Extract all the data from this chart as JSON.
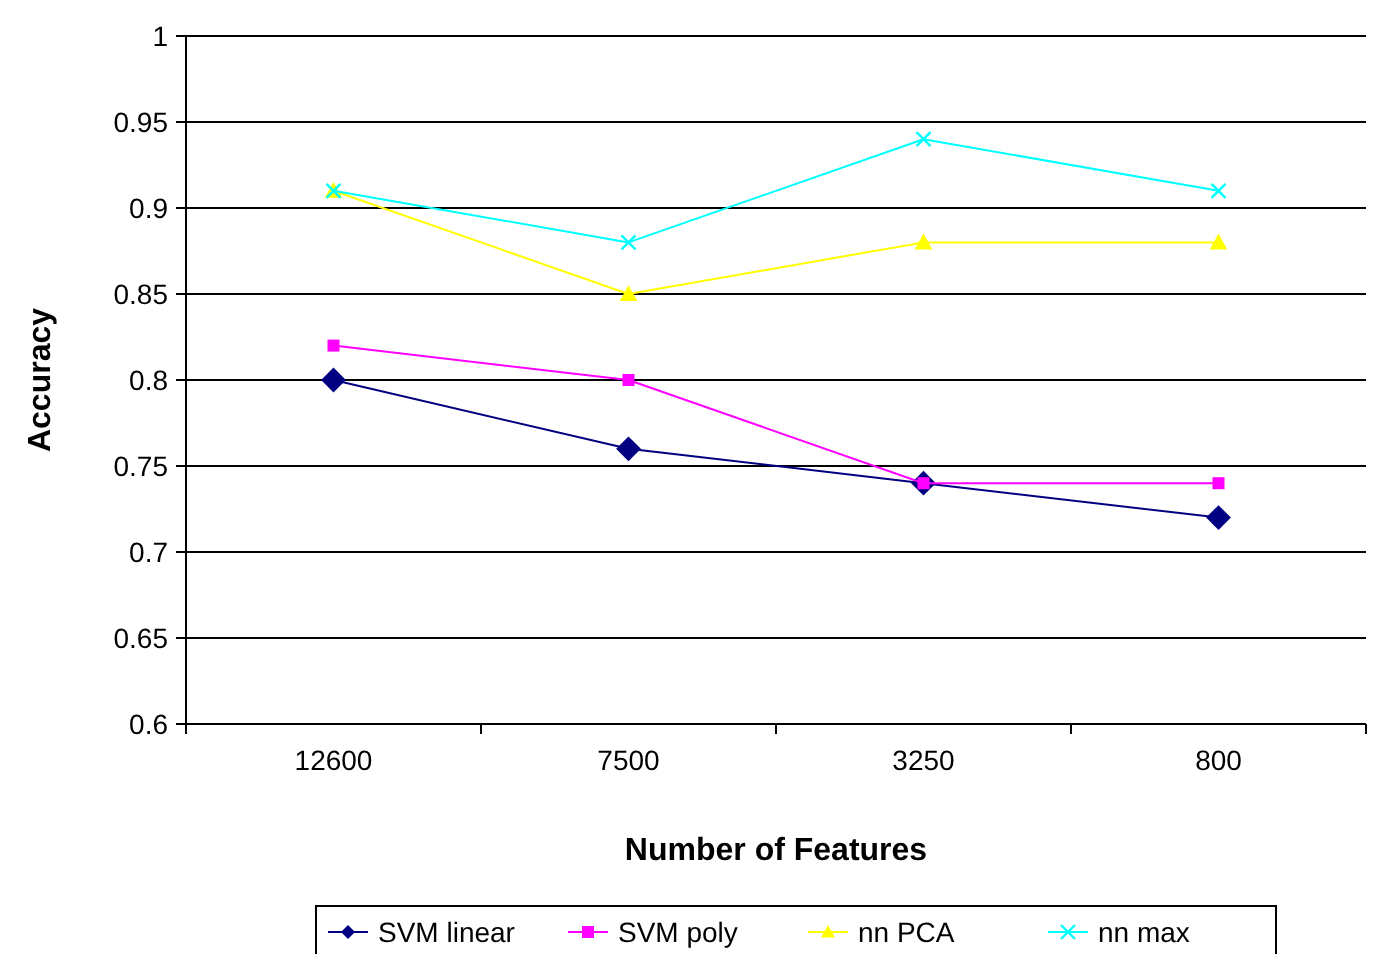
{
  "chart_data": {
    "type": "line",
    "xlabel": "Number of Features",
    "ylabel": "Accuracy",
    "categories": [
      "12600",
      "7500",
      "3250",
      "800"
    ],
    "series": [
      {
        "name": "SVM linear",
        "color": "#000080",
        "marker": "diamond",
        "values": [
          0.8,
          0.76,
          0.74,
          0.72
        ]
      },
      {
        "name": "SVM poly",
        "color": "#ff00ff",
        "marker": "square",
        "values": [
          0.82,
          0.8,
          0.74,
          0.74
        ]
      },
      {
        "name": "nn PCA",
        "color": "#ffff00",
        "marker": "triangle",
        "values": [
          0.91,
          0.85,
          0.88,
          0.88
        ]
      },
      {
        "name": "nn max",
        "color": "#00ffff",
        "marker": "cross",
        "values": [
          0.91,
          0.88,
          0.94,
          0.91
        ]
      }
    ],
    "ylim": [
      0.6,
      1
    ],
    "yticks": [
      0.6,
      0.65,
      0.7,
      0.75,
      0.8,
      0.85,
      0.9,
      0.95,
      1
    ],
    "grid": "y",
    "legend": "bottom",
    "line_style": "solid"
  }
}
